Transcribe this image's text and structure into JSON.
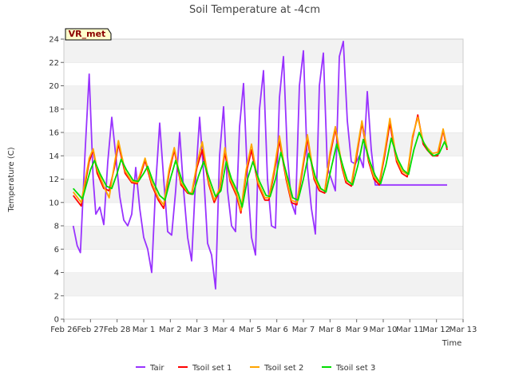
{
  "chart_data": {
    "type": "line",
    "title": "Soil Temperature at -4cm",
    "xlabel": "Time",
    "ylabel": "Temperature (C)",
    "ylim": [
      0,
      24
    ],
    "yticks": [
      0,
      2,
      4,
      6,
      8,
      10,
      12,
      14,
      16,
      18,
      20,
      22,
      24
    ],
    "xlim": [
      0,
      15
    ],
    "xtick_labels": [
      "Feb 26",
      "Feb 27",
      "Feb 28",
      "Mar 1",
      "Mar 2",
      "Mar 3",
      "Mar 4",
      "Mar 5",
      "Mar 6",
      "Mar 7",
      "Mar 8",
      "Mar 9",
      "Mar 10",
      "Mar 11",
      "Mar 12",
      "Mar 13"
    ],
    "x_unit": "days since Feb 26 00:00",
    "grid": "horizontal bands",
    "legend_position": "bottom",
    "badge": "VR_met",
    "series": [
      {
        "name": "Tair",
        "color": "#9933ff",
        "x": [
          0.35,
          0.5,
          0.62,
          0.8,
          0.95,
          1.1,
          1.2,
          1.35,
          1.5,
          1.65,
          1.8,
          1.95,
          2.1,
          2.25,
          2.4,
          2.55,
          2.7,
          2.85,
          3.0,
          3.15,
          3.3,
          3.45,
          3.6,
          3.75,
          3.9,
          4.05,
          4.2,
          4.35,
          4.5,
          4.65,
          4.8,
          4.95,
          5.1,
          5.25,
          5.4,
          5.55,
          5.7,
          5.85,
          6.0,
          6.15,
          6.3,
          6.45,
          6.6,
          6.75,
          6.9,
          7.05,
          7.2,
          7.35,
          7.5,
          7.65,
          7.8,
          7.95,
          8.1,
          8.25,
          8.4,
          8.55,
          8.7,
          8.85,
          9.0,
          9.15,
          9.3,
          9.45,
          9.6,
          9.75,
          9.9,
          10.05,
          10.2,
          10.35,
          10.5,
          10.65,
          10.8,
          10.95,
          11.1,
          11.25,
          11.4,
          11.55,
          11.7,
          11.85,
          12.0,
          12.15,
          12.3,
          12.45,
          12.6,
          12.75,
          12.9,
          13.05,
          13.2,
          13.35,
          13.5,
          13.65,
          13.8,
          13.95,
          14.1,
          14.25,
          14.4
        ],
        "y": [
          8.0,
          6.3,
          5.7,
          14.5,
          21.0,
          12.0,
          9.0,
          9.6,
          8.1,
          13.5,
          17.3,
          14.0,
          10.5,
          8.5,
          8.0,
          9.0,
          13.0,
          9.5,
          7.0,
          6.0,
          4.0,
          11.5,
          16.8,
          12.0,
          7.5,
          7.2,
          11.0,
          16.0,
          11.0,
          7.0,
          5.0,
          12.0,
          17.3,
          12.5,
          6.5,
          5.5,
          2.6,
          14.0,
          18.2,
          11.0,
          8.0,
          7.5,
          16.5,
          20.2,
          12.0,
          7.0,
          5.5,
          18.0,
          21.3,
          12.0,
          8.0,
          7.8,
          19.0,
          22.5,
          14.0,
          10.0,
          9.0,
          20.0,
          23.0,
          13.0,
          9.5,
          7.3,
          20.0,
          22.8,
          13.0,
          12.0,
          11.0,
          22.5,
          23.8,
          17.0,
          13.5,
          13.3,
          14.0,
          13.0,
          19.5,
          14.5,
          11.5,
          11.5,
          11.5,
          11.5,
          11.5,
          11.5,
          11.5,
          11.5,
          11.5,
          11.5,
          11.5,
          11.5,
          11.5,
          11.5,
          11.5,
          11.5,
          11.5,
          11.5,
          11.5
        ]
      },
      {
        "name": "Tsoil set 1",
        "color": "#ff0000",
        "x": [
          0.35,
          0.65,
          0.95,
          1.1,
          1.25,
          1.5,
          1.7,
          1.9,
          2.05,
          2.3,
          2.55,
          2.75,
          2.9,
          3.05,
          3.3,
          3.55,
          3.75,
          3.95,
          4.15,
          4.4,
          4.65,
          4.8,
          5.0,
          5.2,
          5.45,
          5.65,
          5.85,
          6.05,
          6.25,
          6.5,
          6.65,
          6.85,
          7.05,
          7.3,
          7.55,
          7.7,
          7.9,
          8.1,
          8.35,
          8.55,
          8.75,
          8.95,
          9.15,
          9.4,
          9.6,
          9.8,
          10.0,
          10.2,
          10.45,
          10.6,
          10.8,
          11.0,
          11.2,
          11.45,
          11.65,
          11.85,
          12.05,
          12.25,
          12.5,
          12.7,
          12.9,
          13.1,
          13.3,
          13.5,
          13.65,
          13.85,
          14.05,
          14.25,
          14.4
        ],
        "y": [
          10.6,
          9.7,
          13.5,
          14.5,
          12.5,
          11.2,
          11.0,
          13.0,
          15.0,
          12.5,
          11.7,
          11.6,
          12.5,
          13.6,
          11.5,
          10.2,
          9.5,
          12.5,
          14.5,
          11.5,
          10.8,
          10.7,
          13.0,
          14.5,
          11.5,
          10.0,
          11.0,
          14.3,
          11.8,
          10.5,
          9.1,
          12.5,
          14.5,
          11.5,
          10.2,
          10.2,
          12.5,
          15.3,
          12.0,
          10.0,
          9.8,
          12.5,
          15.5,
          12.0,
          11.0,
          10.8,
          14.0,
          16.3,
          13.0,
          11.7,
          11.4,
          14.0,
          16.8,
          13.5,
          12.0,
          11.5,
          14.0,
          16.8,
          13.5,
          12.5,
          12.2,
          15.5,
          17.5,
          15.0,
          14.5,
          14.0,
          14.0,
          16.2,
          14.5
        ]
      },
      {
        "name": "Tsoil set 2",
        "color": "#ffa500",
        "x": [
          0.35,
          0.65,
          0.95,
          1.1,
          1.25,
          1.5,
          1.7,
          1.9,
          2.05,
          2.3,
          2.55,
          2.75,
          2.9,
          3.05,
          3.3,
          3.55,
          3.75,
          3.95,
          4.15,
          4.4,
          4.65,
          4.8,
          5.0,
          5.2,
          5.45,
          5.65,
          5.85,
          6.05,
          6.25,
          6.5,
          6.65,
          6.85,
          7.05,
          7.3,
          7.55,
          7.7,
          7.9,
          8.1,
          8.35,
          8.55,
          8.75,
          8.95,
          9.15,
          9.4,
          9.6,
          9.8,
          10.0,
          10.2,
          10.45,
          10.6,
          10.8,
          11.0,
          11.2,
          11.45,
          11.65,
          11.85,
          12.05,
          12.25,
          12.5,
          12.7,
          12.9,
          13.1,
          13.3,
          13.5,
          13.65,
          13.85,
          14.05,
          14.25,
          14.4
        ],
        "y": [
          10.9,
          10.0,
          13.8,
          14.6,
          12.8,
          11.4,
          10.4,
          13.3,
          15.3,
          12.7,
          11.8,
          11.7,
          12.7,
          13.8,
          11.7,
          10.4,
          9.8,
          12.8,
          14.7,
          11.7,
          10.9,
          10.8,
          13.3,
          15.2,
          11.7,
          10.2,
          11.2,
          14.7,
          12.0,
          10.7,
          9.3,
          12.8,
          15.0,
          11.7,
          10.4,
          10.4,
          12.8,
          15.7,
          12.2,
          10.2,
          10.0,
          12.8,
          15.8,
          12.2,
          11.2,
          11.0,
          14.3,
          16.5,
          13.2,
          11.9,
          11.6,
          14.3,
          17.0,
          13.7,
          12.2,
          11.7,
          14.3,
          17.2,
          13.7,
          12.7,
          12.4,
          15.7,
          17.3,
          15.2,
          14.7,
          14.2,
          14.3,
          16.3,
          14.7
        ]
      },
      {
        "name": "Tsoil set 3",
        "color": "#00dd00",
        "x": [
          0.35,
          0.7,
          1.0,
          1.15,
          1.35,
          1.6,
          1.8,
          2.0,
          2.15,
          2.35,
          2.6,
          2.8,
          3.0,
          3.15,
          3.35,
          3.6,
          3.8,
          4.0,
          4.2,
          4.45,
          4.7,
          4.85,
          5.05,
          5.25,
          5.5,
          5.7,
          5.9,
          6.1,
          6.3,
          6.55,
          6.7,
          6.9,
          7.1,
          7.35,
          7.6,
          7.75,
          7.95,
          8.15,
          8.4,
          8.6,
          8.8,
          9.0,
          9.2,
          9.45,
          9.65,
          9.85,
          10.05,
          10.25,
          10.5,
          10.65,
          10.85,
          11.05,
          11.25,
          11.5,
          11.7,
          11.9,
          12.1,
          12.3,
          12.55,
          12.75,
          12.95,
          13.15,
          13.35,
          13.55,
          13.7,
          13.9,
          14.1,
          14.3,
          14.4
        ],
        "y": [
          11.2,
          10.3,
          12.8,
          13.6,
          12.5,
          11.4,
          11.2,
          12.5,
          13.7,
          12.8,
          11.9,
          11.8,
          12.5,
          13.1,
          11.8,
          10.6,
          10.2,
          12.0,
          13.6,
          11.8,
          10.8,
          10.7,
          12.2,
          13.5,
          11.8,
          10.5,
          11.0,
          13.5,
          12.0,
          10.8,
          9.6,
          12.0,
          13.5,
          11.8,
          10.6,
          10.5,
          12.0,
          14.3,
          12.2,
          10.4,
          10.2,
          12.0,
          14.2,
          12.2,
          11.2,
          10.9,
          13.0,
          15.0,
          13.0,
          11.9,
          11.5,
          13.2,
          15.4,
          13.5,
          12.3,
          11.6,
          13.2,
          15.5,
          13.7,
          12.8,
          12.4,
          14.5,
          16.0,
          15.0,
          14.4,
          14.0,
          14.2,
          15.2,
          14.7
        ]
      }
    ]
  }
}
